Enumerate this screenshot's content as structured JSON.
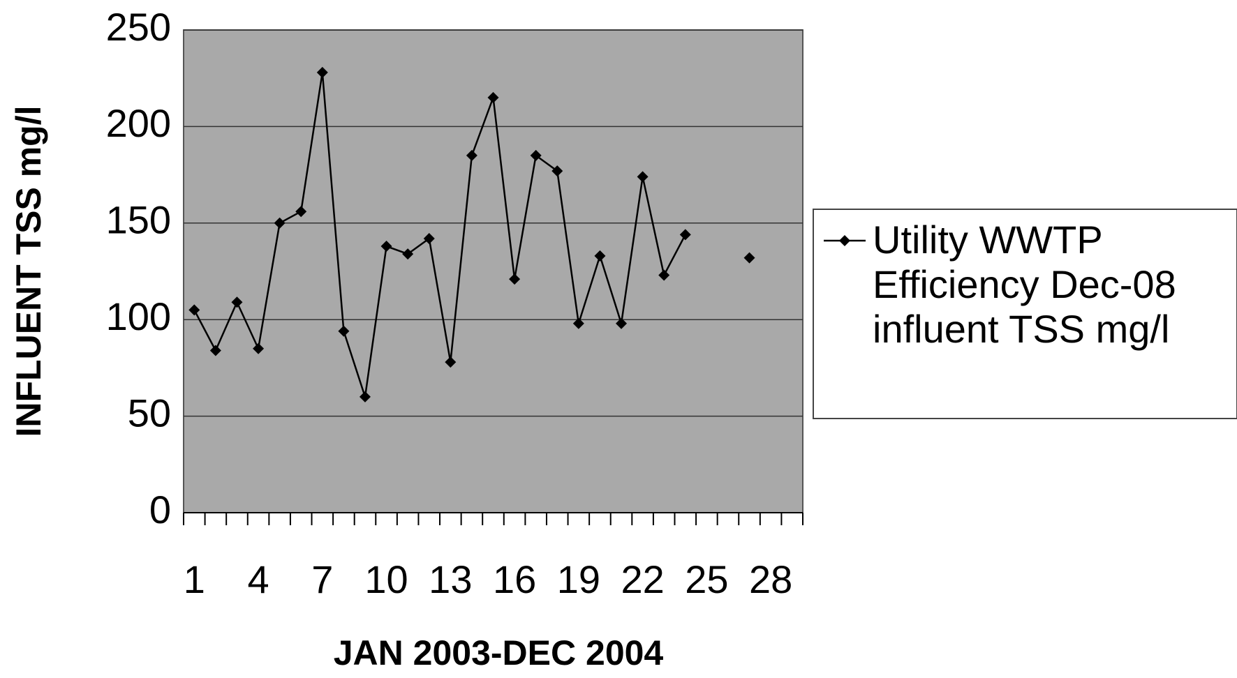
{
  "chart_data": {
    "type": "line",
    "y_label": "INFLUENT TSS mg/l",
    "x_label": "JAN 2003-DEC 2004",
    "categories": [
      1,
      null,
      null,
      4,
      null,
      null,
      7,
      null,
      null,
      10,
      null,
      null,
      13,
      null,
      null,
      16,
      null,
      null,
      19,
      null,
      null,
      22,
      null,
      null,
      25,
      null,
      null,
      28,
      null
    ],
    "series": [
      {
        "name": "Utility WWTP Efficiency Dec-08 influent TSS mg/l",
        "color": "#000000",
        "values": [
          105,
          84,
          109,
          85,
          150,
          156,
          228,
          94,
          60,
          138,
          134,
          142,
          78,
          185,
          215,
          121,
          185,
          177,
          98,
          133,
          98,
          174,
          123,
          144,
          null,
          null,
          132,
          null,
          null
        ]
      }
    ],
    "ylim": [
      0,
      250
    ],
    "yticks": [
      0,
      50,
      100,
      150,
      200,
      250
    ],
    "grid": true,
    "legend": "right"
  }
}
